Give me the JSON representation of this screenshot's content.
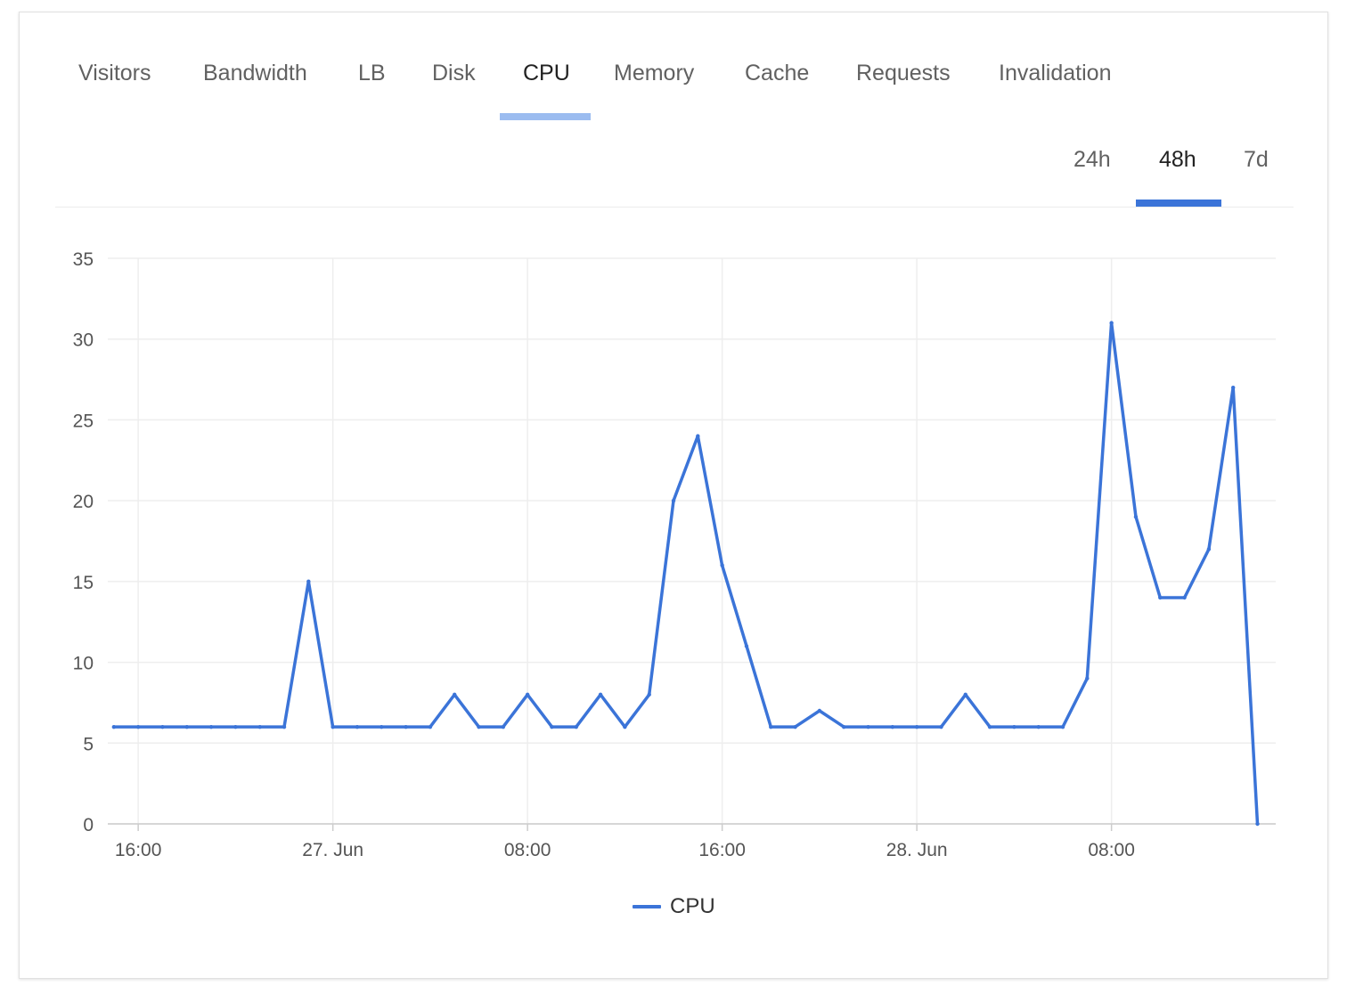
{
  "tabs": [
    {
      "label": "Visitors",
      "active": false
    },
    {
      "label": "Bandwidth",
      "active": false
    },
    {
      "label": "LB",
      "active": false
    },
    {
      "label": "Disk",
      "active": false
    },
    {
      "label": "CPU",
      "active": true
    },
    {
      "label": "Memory",
      "active": false
    },
    {
      "label": "Cache",
      "active": false
    },
    {
      "label": "Requests",
      "active": false
    },
    {
      "label": "Invalidation",
      "active": false
    }
  ],
  "ranges": [
    {
      "label": "24h",
      "active": false
    },
    {
      "label": "48h",
      "active": true
    },
    {
      "label": "7d",
      "active": false
    }
  ],
  "colors": {
    "series": "#3b74d8",
    "tab_underline": "#9bbcf0",
    "grid": "#eeeeee",
    "axis_text": "#555555"
  },
  "chart_data": {
    "type": "line",
    "title": "",
    "xlabel": "",
    "ylabel": "",
    "ylim": [
      0,
      35
    ],
    "yticks": [
      0,
      5,
      10,
      15,
      20,
      25,
      30,
      35
    ],
    "xlim": [
      "2023-06-26 14:45",
      "2023-06-28 14:45"
    ],
    "xticks": [
      {
        "t": "2023-06-26 16:00",
        "label": "16:00"
      },
      {
        "t": "2023-06-27 00:00",
        "label": "27. Jun"
      },
      {
        "t": "2023-06-27 08:00",
        "label": "08:00"
      },
      {
        "t": "2023-06-27 16:00",
        "label": "16:00"
      },
      {
        "t": "2023-06-28 00:00",
        "label": "28. Jun"
      },
      {
        "t": "2023-06-28 08:00",
        "label": "08:00"
      }
    ],
    "grid": true,
    "legend": "bottom-center",
    "series": [
      {
        "name": "CPU",
        "color": "#3b74d8",
        "x": [
          "2023-06-26 15:00",
          "2023-06-26 16:00",
          "2023-06-26 17:00",
          "2023-06-26 18:00",
          "2023-06-26 19:00",
          "2023-06-26 20:00",
          "2023-06-26 21:00",
          "2023-06-26 22:00",
          "2023-06-26 23:00",
          "2023-06-27 00:00",
          "2023-06-27 01:00",
          "2023-06-27 02:00",
          "2023-06-27 03:00",
          "2023-06-27 04:00",
          "2023-06-27 05:00",
          "2023-06-27 06:00",
          "2023-06-27 07:00",
          "2023-06-27 08:00",
          "2023-06-27 09:00",
          "2023-06-27 10:00",
          "2023-06-27 11:00",
          "2023-06-27 12:00",
          "2023-06-27 13:00",
          "2023-06-27 14:00",
          "2023-06-27 15:00",
          "2023-06-27 16:00",
          "2023-06-27 17:00",
          "2023-06-27 18:00",
          "2023-06-27 19:00",
          "2023-06-27 20:00",
          "2023-06-27 21:00",
          "2023-06-27 22:00",
          "2023-06-27 23:00",
          "2023-06-28 00:00",
          "2023-06-28 01:00",
          "2023-06-28 02:00",
          "2023-06-28 03:00",
          "2023-06-28 04:00",
          "2023-06-28 05:00",
          "2023-06-28 06:00",
          "2023-06-28 07:00",
          "2023-06-28 08:00",
          "2023-06-28 09:00",
          "2023-06-28 10:00",
          "2023-06-28 11:00",
          "2023-06-28 12:00",
          "2023-06-28 13:00",
          "2023-06-28 14:00"
        ],
        "values": [
          6,
          6,
          6,
          6,
          6,
          6,
          6,
          6,
          15,
          6,
          6,
          6,
          6,
          6,
          8,
          6,
          6,
          8,
          6,
          6,
          8,
          6,
          8,
          20,
          24,
          16,
          11,
          6,
          6,
          7,
          6,
          6,
          6,
          6,
          6,
          8,
          6,
          6,
          6,
          6,
          9,
          31,
          19,
          14,
          14,
          17,
          27,
          0
        ]
      }
    ]
  }
}
